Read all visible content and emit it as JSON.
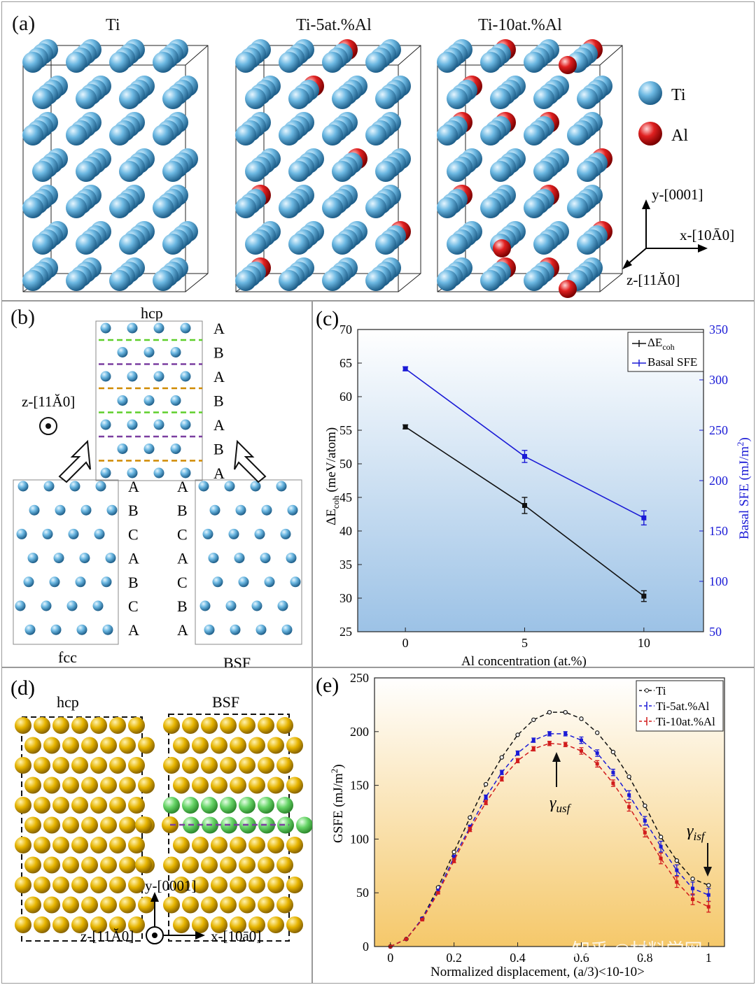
{
  "panel_a": {
    "label": "(a)",
    "titles": [
      "Ti",
      "Ti-5at.%Al",
      "Ti-10at.%Al"
    ],
    "legend": [
      {
        "name": "Ti",
        "color": "#5ba9d8",
        "icon": "ti-atom-icon"
      },
      {
        "name": "Al",
        "color": "#d11c1c",
        "icon": "al-atom-icon"
      }
    ],
    "axes": {
      "y": "y-[0001]",
      "x": "x-[10Ā0]",
      "z": "z-[11Ă0]"
    }
  },
  "panel_b": {
    "label": "(b)",
    "hcp_title": "hcp",
    "hcp_stack": [
      "A",
      "B",
      "A",
      "B",
      "A",
      "B",
      "A"
    ],
    "fcc_stack": [
      "A",
      "B",
      "C",
      "A",
      "B",
      "C",
      "A"
    ],
    "bsf_stack": [
      "A",
      "B",
      "C",
      "A",
      "C",
      "B",
      "A"
    ],
    "fcc_label": "fcc",
    "bsf_label": "BSF",
    "z_axis": "z-[11Ă0]"
  },
  "panel_c": {
    "label": "(c)",
    "legend": [
      "ΔE",
      "coh",
      "Basal SFE"
    ],
    "ylabel_left": [
      "ΔE",
      "coh",
      " (meV/atom)"
    ],
    "ylabel_right": [
      "Basal SFE (mJ/m",
      "2",
      ")"
    ]
  },
  "panel_d": {
    "label": "(d)",
    "titles": [
      "hcp",
      "BSF"
    ],
    "axes": {
      "y": "y-[0001]",
      "x": "x-[10ā0]",
      "z": "z-[11Ă0]"
    }
  },
  "panel_e": {
    "label": "(e)",
    "annotations": [
      "γ",
      "usf",
      "γ",
      "isf"
    ],
    "ylabel": [
      "GSFE (mJ/m",
      "2",
      ")"
    ]
  },
  "watermark": "知乎 @材料学网",
  "chart_data": [
    {
      "type": "line",
      "title": "",
      "xlabel": "Al concentration (at.%)",
      "ylabel": "ΔEcoh (meV/atom)",
      "ylabel_right": "Basal SFE (mJ/m2)",
      "x": [
        0,
        5,
        10
      ],
      "xticks": [
        "0",
        "5",
        "10"
      ],
      "xlim": [
        -2,
        12.5
      ],
      "ylim": [
        25,
        70
      ],
      "yticks": [
        "25",
        "30",
        "35",
        "40",
        "45",
        "50",
        "55",
        "60",
        "65",
        "70"
      ],
      "ylim_right": [
        50,
        350
      ],
      "yticks_right": [
        "50",
        "100",
        "150",
        "200",
        "250",
        "300",
        "350"
      ],
      "legend_position": "top-right",
      "series": [
        {
          "name": "ΔEcoh",
          "axis": "left",
          "color": "#111111",
          "marker": "square",
          "values": [
            55.5,
            43.8,
            30.3
          ],
          "errors": [
            0.3,
            1.2,
            0.8
          ]
        },
        {
          "name": "Basal SFE",
          "axis": "right",
          "color": "#1a1ad6",
          "marker": "square",
          "values": [
            311,
            224,
            163
          ],
          "errors": [
            2,
            6,
            7
          ]
        }
      ]
    },
    {
      "type": "line",
      "title": "",
      "xlabel": "Normalized displacement, (a/3)<10-10>",
      "ylabel": "GSFE (mJ/m2)",
      "x": [
        0,
        0.05,
        0.1,
        0.15,
        0.2,
        0.25,
        0.3,
        0.35,
        0.4,
        0.45,
        0.5,
        0.55,
        0.6,
        0.65,
        0.7,
        0.75,
        0.8,
        0.85,
        0.9,
        0.95,
        1.0
      ],
      "xticks": [
        "0",
        "0.2",
        "0.4",
        "0.6",
        "0.8",
        "1"
      ],
      "xlim": [
        -0.05,
        1.05
      ],
      "ylim": [
        0,
        250
      ],
      "yticks": [
        "0",
        "50",
        "100",
        "150",
        "200",
        "250"
      ],
      "legend_position": "top-right",
      "series": [
        {
          "name": "Ti",
          "color": "#111111",
          "dash": "dashed",
          "values": [
            0,
            7,
            26,
            55,
            88,
            120,
            151,
            176,
            197,
            211,
            218,
            218,
            212,
            199,
            181,
            158,
            131,
            102,
            80,
            63,
            57
          ]
        },
        {
          "name": "Ti-5at.%Al",
          "color": "#1a1ad6",
          "dash": "dashed",
          "values": [
            0,
            7,
            26,
            52,
            83,
            111,
            139,
            162,
            180,
            192,
            198,
            198,
            192,
            180,
            162,
            141,
            117,
            93,
            71,
            54,
            48
          ],
          "errors": [
            0,
            0,
            1,
            1,
            2,
            2,
            2,
            2,
            2,
            2,
            2,
            2,
            3,
            3,
            3,
            4,
            4,
            5,
            5,
            6,
            6
          ]
        },
        {
          "name": "Ti-10at.%Al",
          "color": "#d11c1c",
          "dash": "dashed",
          "values": [
            0,
            7,
            25,
            50,
            80,
            109,
            134,
            156,
            173,
            184,
            189,
            188,
            182,
            170,
            152,
            130,
            106,
            82,
            60,
            44,
            37
          ],
          "errors": [
            0,
            0,
            1,
            1,
            2,
            2,
            2,
            2,
            2,
            2,
            2,
            2,
            3,
            3,
            3,
            4,
            4,
            5,
            5,
            5,
            5
          ]
        }
      ]
    }
  ]
}
